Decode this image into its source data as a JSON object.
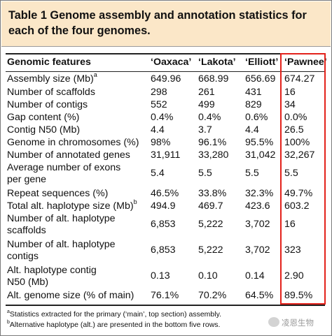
{
  "title": "Table 1 Genome assembly and annotation statistics for each of the four genomes.",
  "columns": [
    "Genomic features",
    "‘Oaxaca’",
    "‘Lakota’",
    "‘Elliott’",
    "‘Pawnee’"
  ],
  "rows": [
    {
      "label": "Assembly size (Mb)",
      "sup": "a",
      "values": [
        "649.96",
        "668.99",
        "656.69",
        "674.27"
      ]
    },
    {
      "label": "Number of scaffolds",
      "values": [
        "298",
        "261",
        "431",
        "16"
      ]
    },
    {
      "label": "Number of contigs",
      "values": [
        "552",
        "499",
        "829",
        "34"
      ]
    },
    {
      "label": "Gap content (%)",
      "values": [
        "0.4%",
        "0.4%",
        "0.6%",
        "0.0%"
      ]
    },
    {
      "label": "Contig N50 (Mb)",
      "values": [
        "4.4",
        "3.7",
        "4.4",
        "26.5"
      ]
    },
    {
      "label": "Genome in chromosomes (%)",
      "values": [
        "98%",
        "96.1%",
        "95.5%",
        "100%"
      ]
    },
    {
      "label": "Number of annotated genes",
      "values": [
        "31,911",
        "33,280",
        "31,042",
        "32,267"
      ]
    },
    {
      "label": "Average number of exons",
      "label2": "per gene",
      "values": [
        "5.4",
        "5.5",
        "5.5",
        "5.5"
      ]
    },
    {
      "label": "Repeat sequences (%)",
      "values": [
        "46.5%",
        "33.8%",
        "32.3%",
        "49.7%"
      ]
    },
    {
      "label": "Total alt. haplotype size (Mb)",
      "sup": "b",
      "values": [
        "494.9",
        "469.7",
        "423.6",
        "603.2"
      ]
    },
    {
      "label": "Number of alt. haplotype",
      "label2": "scaffolds",
      "values": [
        "6,853",
        "5,222",
        "3,702",
        "16"
      ]
    },
    {
      "label": "Number of alt. haplotype",
      "label2": "contigs",
      "values": [
        "6,853",
        "5,222",
        "3,702",
        "323"
      ]
    },
    {
      "label": "Alt. haplotype contig",
      "label2": "N50 (Mb)",
      "values": [
        "0.13",
        "0.10",
        "0.14",
        "2.90"
      ]
    },
    {
      "label": "Alt. genome size (% of main)",
      "values": [
        "76.1%",
        "70.2%",
        "64.5%",
        "89.5%"
      ]
    }
  ],
  "footnotes": [
    {
      "mark": "a",
      "text": "Statistics extracted for the primary (‘main’, top section) assembly."
    },
    {
      "mark": "b",
      "text": "Alternative haplotype (alt.) are presented in the bottom five rows."
    }
  ],
  "watermark": "凌恩生物",
  "colors": {
    "header_bg": "#fbe7c8",
    "highlight_border": "#e3221b"
  }
}
